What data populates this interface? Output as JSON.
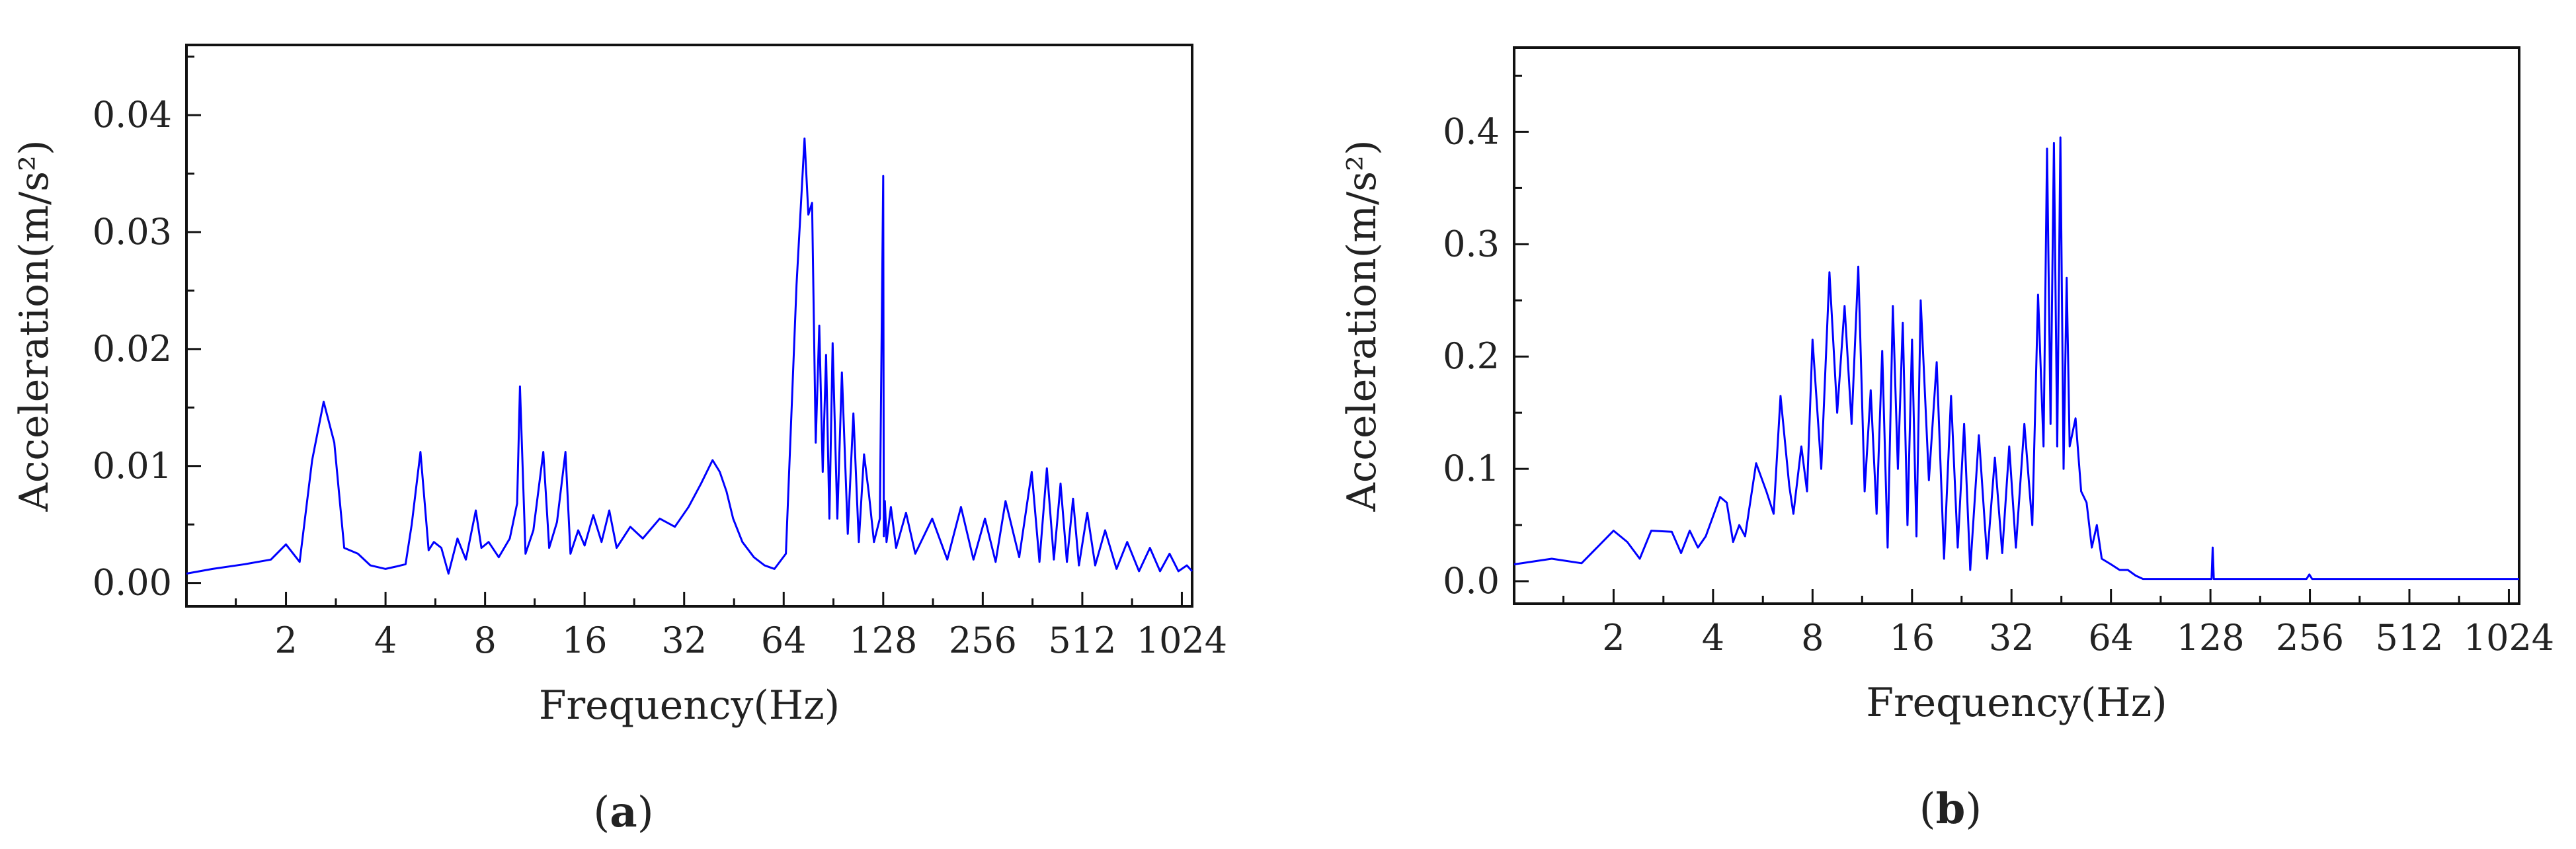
{
  "chart_data": [
    {
      "type": "line",
      "panel_label": "a",
      "xlabel": "Frequency(Hz)",
      "ylabel": "Acceleration(m/s²)",
      "x_scale": "log2",
      "xlim": [
        1,
        1100
      ],
      "ylim": [
        -0.002,
        0.046
      ],
      "xticks": [
        2,
        4,
        8,
        16,
        32,
        64,
        128,
        256,
        512,
        1024
      ],
      "yticks": [
        0.0,
        0.01,
        0.02,
        0.03,
        0.04
      ],
      "ytick_labels": [
        "0.00",
        "0.01",
        "0.02",
        "0.03",
        "0.04"
      ],
      "color": "#0000ff",
      "series": [
        {
          "x": [
            1.0,
            1.2,
            1.5,
            1.8,
            2.0,
            2.2,
            2.4,
            2.6,
            2.8,
            3.0,
            3.3,
            3.6,
            4.0,
            4.3,
            4.6,
            4.8,
            5.1,
            5.4,
            5.6,
            5.9,
            6.2,
            6.6,
            7.0,
            7.5,
            7.8,
            8.2,
            8.8,
            9.5,
            10.0,
            10.2,
            10.6,
            11.2,
            12.0,
            12.5,
            13.2,
            14.0,
            14.5,
            15.3,
            16.0,
            17.0,
            18.0,
            19.0,
            20.0,
            22.0,
            24.0,
            27.0,
            30.0,
            33.0,
            36.0,
            39.0,
            41.0,
            43.0,
            45.0,
            48.0,
            52.0,
            56.0,
            60.0,
            65.0,
            70.0,
            74.0,
            76.0,
            78.0,
            80.0,
            82.0,
            84.0,
            86.0,
            88.0,
            90.0,
            93.0,
            96.0,
            100.0,
            104.0,
            108.0,
            112.0,
            116.0,
            120.0,
            125.0,
            128.0,
            128.5,
            129.5,
            131.0,
            135.0,
            140.0,
            150.0,
            160.0,
            180.0,
            200.0,
            220.0,
            240.0,
            260.0,
            280.0,
            300.0,
            330.0,
            360.0,
            380.0,
            400.0,
            420.0,
            440.0,
            460.0,
            480.0,
            500.0,
            530.0,
            560.0,
            600.0,
            650.0,
            700.0,
            760.0,
            820.0,
            880.0,
            940.0,
            1000.0,
            1060.0,
            1100.0
          ],
          "y": [
            0.0008,
            0.0012,
            0.0016,
            0.002,
            0.0033,
            0.0018,
            0.0105,
            0.0155,
            0.012,
            0.003,
            0.0025,
            0.0015,
            0.0012,
            0.0014,
            0.0016,
            0.005,
            0.0112,
            0.0028,
            0.0035,
            0.003,
            0.0008,
            0.0038,
            0.002,
            0.0062,
            0.003,
            0.0035,
            0.0022,
            0.0038,
            0.0068,
            0.0168,
            0.0025,
            0.0045,
            0.0112,
            0.003,
            0.0052,
            0.0112,
            0.0025,
            0.0045,
            0.0032,
            0.0058,
            0.0035,
            0.0062,
            0.003,
            0.0048,
            0.0038,
            0.0055,
            0.0048,
            0.0065,
            0.0085,
            0.0105,
            0.0095,
            0.0078,
            0.0055,
            0.0035,
            0.0022,
            0.0015,
            0.0012,
            0.0025,
            0.0255,
            0.038,
            0.0315,
            0.0325,
            0.012,
            0.022,
            0.0095,
            0.0195,
            0.0055,
            0.0205,
            0.0055,
            0.018,
            0.0042,
            0.0145,
            0.0035,
            0.011,
            0.0075,
            0.0035,
            0.0055,
            0.0348,
            0.004,
            0.007,
            0.0035,
            0.0065,
            0.003,
            0.006,
            0.0025,
            0.0055,
            0.002,
            0.0065,
            0.002,
            0.0055,
            0.0018,
            0.007,
            0.0022,
            0.0095,
            0.0018,
            0.0098,
            0.002,
            0.0085,
            0.0018,
            0.0072,
            0.0015,
            0.006,
            0.0015,
            0.0045,
            0.0012,
            0.0035,
            0.001,
            0.003,
            0.001,
            0.0025,
            0.001,
            0.0015,
            0.001
          ]
        }
      ]
    },
    {
      "type": "line",
      "panel_label": "b",
      "xlabel": "Frequency(Hz)",
      "ylabel": "Acceleration(m/s²)",
      "x_scale": "log2",
      "xlim": [
        1,
        1100
      ],
      "ylim": [
        -0.02,
        0.475
      ],
      "xticks": [
        2,
        4,
        8,
        16,
        32,
        64,
        128,
        256,
        512,
        1024
      ],
      "yticks": [
        0.0,
        0.1,
        0.2,
        0.3,
        0.4
      ],
      "ytick_labels": [
        "0.0",
        "0.1",
        "0.2",
        "0.3",
        "0.4"
      ],
      "color": "#0000ff",
      "series": [
        {
          "x": [
            1.0,
            1.3,
            1.6,
            2.0,
            2.2,
            2.4,
            2.6,
            3.0,
            3.2,
            3.4,
            3.6,
            3.8,
            4.2,
            4.4,
            4.6,
            4.8,
            5.0,
            5.4,
            5.8,
            6.1,
            6.4,
            6.8,
            7.0,
            7.4,
            7.7,
            8.0,
            8.5,
            9.0,
            9.5,
            10.0,
            10.5,
            11.0,
            11.5,
            12.0,
            12.5,
            13.0,
            13.5,
            14.0,
            14.5,
            15.0,
            15.5,
            16.0,
            16.5,
            17.0,
            18.0,
            19.0,
            20.0,
            21.0,
            22.0,
            23.0,
            24.0,
            25.5,
            27.0,
            28.5,
            30.0,
            31.5,
            33.0,
            35.0,
            37.0,
            38.5,
            40.0,
            41.0,
            42.0,
            43.0,
            44.0,
            45.0,
            46.0,
            47.0,
            48.0,
            50.0,
            52.0,
            54.0,
            56.0,
            58.0,
            60.0,
            64.0,
            68.0,
            72.0,
            76.0,
            80.0,
            90.0,
            100.0,
            120.0,
            129.0,
            130.0,
            131.0,
            150.0,
            200.0,
            250.0,
            255.0,
            260.0,
            300.0,
            400.0,
            500.0,
            700.0,
            900.0,
            1100.0
          ],
          "y": [
            0.015,
            0.02,
            0.016,
            0.045,
            0.035,
            0.02,
            0.045,
            0.044,
            0.025,
            0.045,
            0.03,
            0.04,
            0.075,
            0.07,
            0.035,
            0.05,
            0.04,
            0.105,
            0.08,
            0.06,
            0.165,
            0.085,
            0.06,
            0.12,
            0.08,
            0.215,
            0.1,
            0.275,
            0.15,
            0.245,
            0.14,
            0.28,
            0.08,
            0.17,
            0.06,
            0.205,
            0.03,
            0.245,
            0.1,
            0.23,
            0.05,
            0.215,
            0.04,
            0.25,
            0.09,
            0.195,
            0.02,
            0.165,
            0.03,
            0.14,
            0.01,
            0.13,
            0.02,
            0.11,
            0.025,
            0.12,
            0.03,
            0.14,
            0.05,
            0.255,
            0.12,
            0.385,
            0.14,
            0.39,
            0.12,
            0.395,
            0.1,
            0.27,
            0.12,
            0.145,
            0.08,
            0.07,
            0.03,
            0.05,
            0.02,
            0.015,
            0.01,
            0.01,
            0.005,
            0.002,
            0.002,
            0.002,
            0.002,
            0.002,
            0.03,
            0.002,
            0.002,
            0.002,
            0.002,
            0.006,
            0.002,
            0.002,
            0.002,
            0.002,
            0.002,
            0.002,
            0.002
          ]
        }
      ]
    }
  ]
}
